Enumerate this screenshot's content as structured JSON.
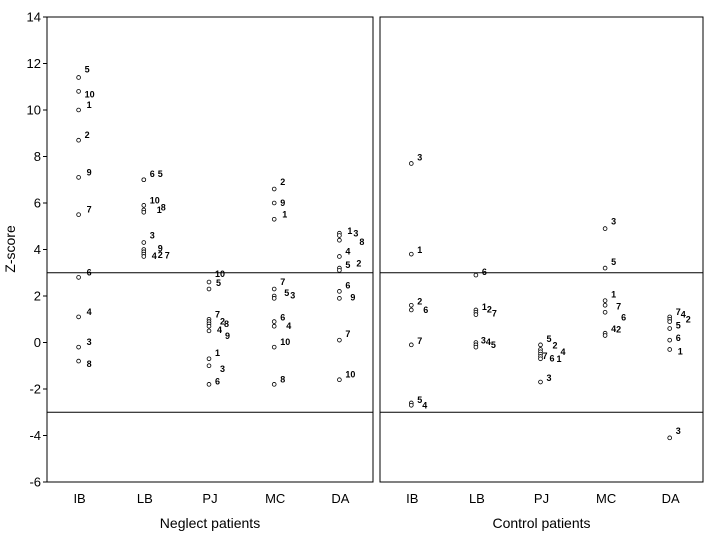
{
  "chart_data": {
    "type": "scatter",
    "ylabel": "Z-score",
    "ylim": [
      -6,
      14
    ],
    "yticks": [
      "14",
      "12",
      "10",
      "8",
      "6",
      "4",
      "2",
      "0",
      "-2",
      "-4",
      "-6"
    ],
    "threshold_lines": [
      3,
      -3
    ],
    "grid": false,
    "panels": [
      {
        "xlabel": "Neglect patients",
        "categories": [
          "IB",
          "LB",
          "PJ",
          "MC",
          "DA"
        ],
        "series": [
          {
            "category": "IB",
            "points": [
              {
                "label": "5",
                "y": 11.4
              },
              {
                "label": "10",
                "y": 10.8
              },
              {
                "label": "1",
                "y": 10.0
              },
              {
                "label": "2",
                "y": 8.7
              },
              {
                "label": "9",
                "y": 7.1
              },
              {
                "label": "7",
                "y": 5.5
              },
              {
                "label": "6",
                "y": 2.8
              },
              {
                "label": "4",
                "y": 1.1
              },
              {
                "label": "3",
                "y": -0.2
              },
              {
                "label": "8",
                "y": -0.8
              }
            ]
          },
          {
            "category": "LB",
            "points": [
              {
                "label": "6",
                "y": 7.0
              },
              {
                "label": "5",
                "y": 7.0
              },
              {
                "label": "10",
                "y": 5.9
              },
              {
                "label": "1",
                "y": 5.7
              },
              {
                "label": "8",
                "y": 5.6
              },
              {
                "label": "3",
                "y": 4.3
              },
              {
                "label": "9",
                "y": 4.0
              },
              {
                "label": "4",
                "y": 3.9
              },
              {
                "label": "2",
                "y": 3.8
              },
              {
                "label": "7",
                "y": 3.7
              }
            ]
          },
          {
            "category": "PJ",
            "points": [
              {
                "label": "10",
                "y": 2.6
              },
              {
                "label": "5",
                "y": 2.3
              },
              {
                "label": "7",
                "y": 1.0
              },
              {
                "label": "2",
                "y": 0.9
              },
              {
                "label": "8",
                "y": 0.8
              },
              {
                "label": "4",
                "y": 0.7
              },
              {
                "label": "9",
                "y": 0.5
              },
              {
                "label": "1",
                "y": -0.7
              },
              {
                "label": "3",
                "y": -1.0
              },
              {
                "label": "6",
                "y": -1.8
              }
            ]
          },
          {
            "category": "MC",
            "points": [
              {
                "label": "2",
                "y": 6.6
              },
              {
                "label": "9",
                "y": 6.0
              },
              {
                "label": "1",
                "y": 5.3
              },
              {
                "label": "7",
                "y": 2.3
              },
              {
                "label": "5",
                "y": 2.0
              },
              {
                "label": "3",
                "y": 1.9
              },
              {
                "label": "6",
                "y": 0.9
              },
              {
                "label": "4",
                "y": 0.7
              },
              {
                "label": "10",
                "y": -0.2
              },
              {
                "label": "8",
                "y": -1.8
              }
            ]
          },
          {
            "category": "DA",
            "points": [
              {
                "label": "1",
                "y": 4.7
              },
              {
                "label": "3",
                "y": 4.6
              },
              {
                "label": "8",
                "y": 4.4
              },
              {
                "label": "4",
                "y": 3.7
              },
              {
                "label": "5",
                "y": 3.2
              },
              {
                "label": "2",
                "y": 3.1
              },
              {
                "label": "6",
                "y": 2.2
              },
              {
                "label": "9",
                "y": 1.9
              },
              {
                "label": "7",
                "y": 0.1
              },
              {
                "label": "10",
                "y": -1.6
              }
            ]
          }
        ]
      },
      {
        "xlabel": "Control patients",
        "categories": [
          "IB",
          "LB",
          "PJ",
          "MC",
          "DA"
        ],
        "series": [
          {
            "category": "IB",
            "points": [
              {
                "label": "3",
                "y": 7.7
              },
              {
                "label": "1",
                "y": 3.8
              },
              {
                "label": "2",
                "y": 1.6
              },
              {
                "label": "6",
                "y": 1.4
              },
              {
                "label": "7",
                "y": -0.1
              },
              {
                "label": "5",
                "y": -2.6
              },
              {
                "label": "4",
                "y": -2.7
              }
            ]
          },
          {
            "category": "LB",
            "points": [
              {
                "label": "6",
                "y": 2.9
              },
              {
                "label": "1",
                "y": 1.4
              },
              {
                "label": "2",
                "y": 1.3
              },
              {
                "label": "7",
                "y": 1.2
              },
              {
                "label": "3",
                "y": 0.0
              },
              {
                "label": "4",
                "y": -0.1
              },
              {
                "label": "5",
                "y": -0.2
              }
            ]
          },
          {
            "category": "PJ",
            "points": [
              {
                "label": "5",
                "y": -0.1
              },
              {
                "label": "2",
                "y": -0.3
              },
              {
                "label": "4",
                "y": -0.4
              },
              {
                "label": "7",
                "y": -0.5
              },
              {
                "label": "6",
                "y": -0.6
              },
              {
                "label": "1",
                "y": -0.7
              },
              {
                "label": "3",
                "y": -1.7
              }
            ]
          },
          {
            "category": "MC",
            "points": [
              {
                "label": "3",
                "y": 4.9
              },
              {
                "label": "5",
                "y": 3.2
              },
              {
                "label": "1",
                "y": 1.8
              },
              {
                "label": "7",
                "y": 1.6
              },
              {
                "label": "6",
                "y": 1.3
              },
              {
                "label": "4",
                "y": 0.4
              },
              {
                "label": "2",
                "y": 0.3
              }
            ]
          },
          {
            "category": "DA",
            "points": [
              {
                "label": "7",
                "y": 1.1
              },
              {
                "label": "4",
                "y": 1.0
              },
              {
                "label": "2",
                "y": 0.9
              },
              {
                "label": "5",
                "y": 0.6
              },
              {
                "label": "6",
                "y": 0.1
              },
              {
                "label": "1",
                "y": -0.3
              },
              {
                "label": "3",
                "y": -4.1
              }
            ]
          }
        ]
      }
    ]
  }
}
